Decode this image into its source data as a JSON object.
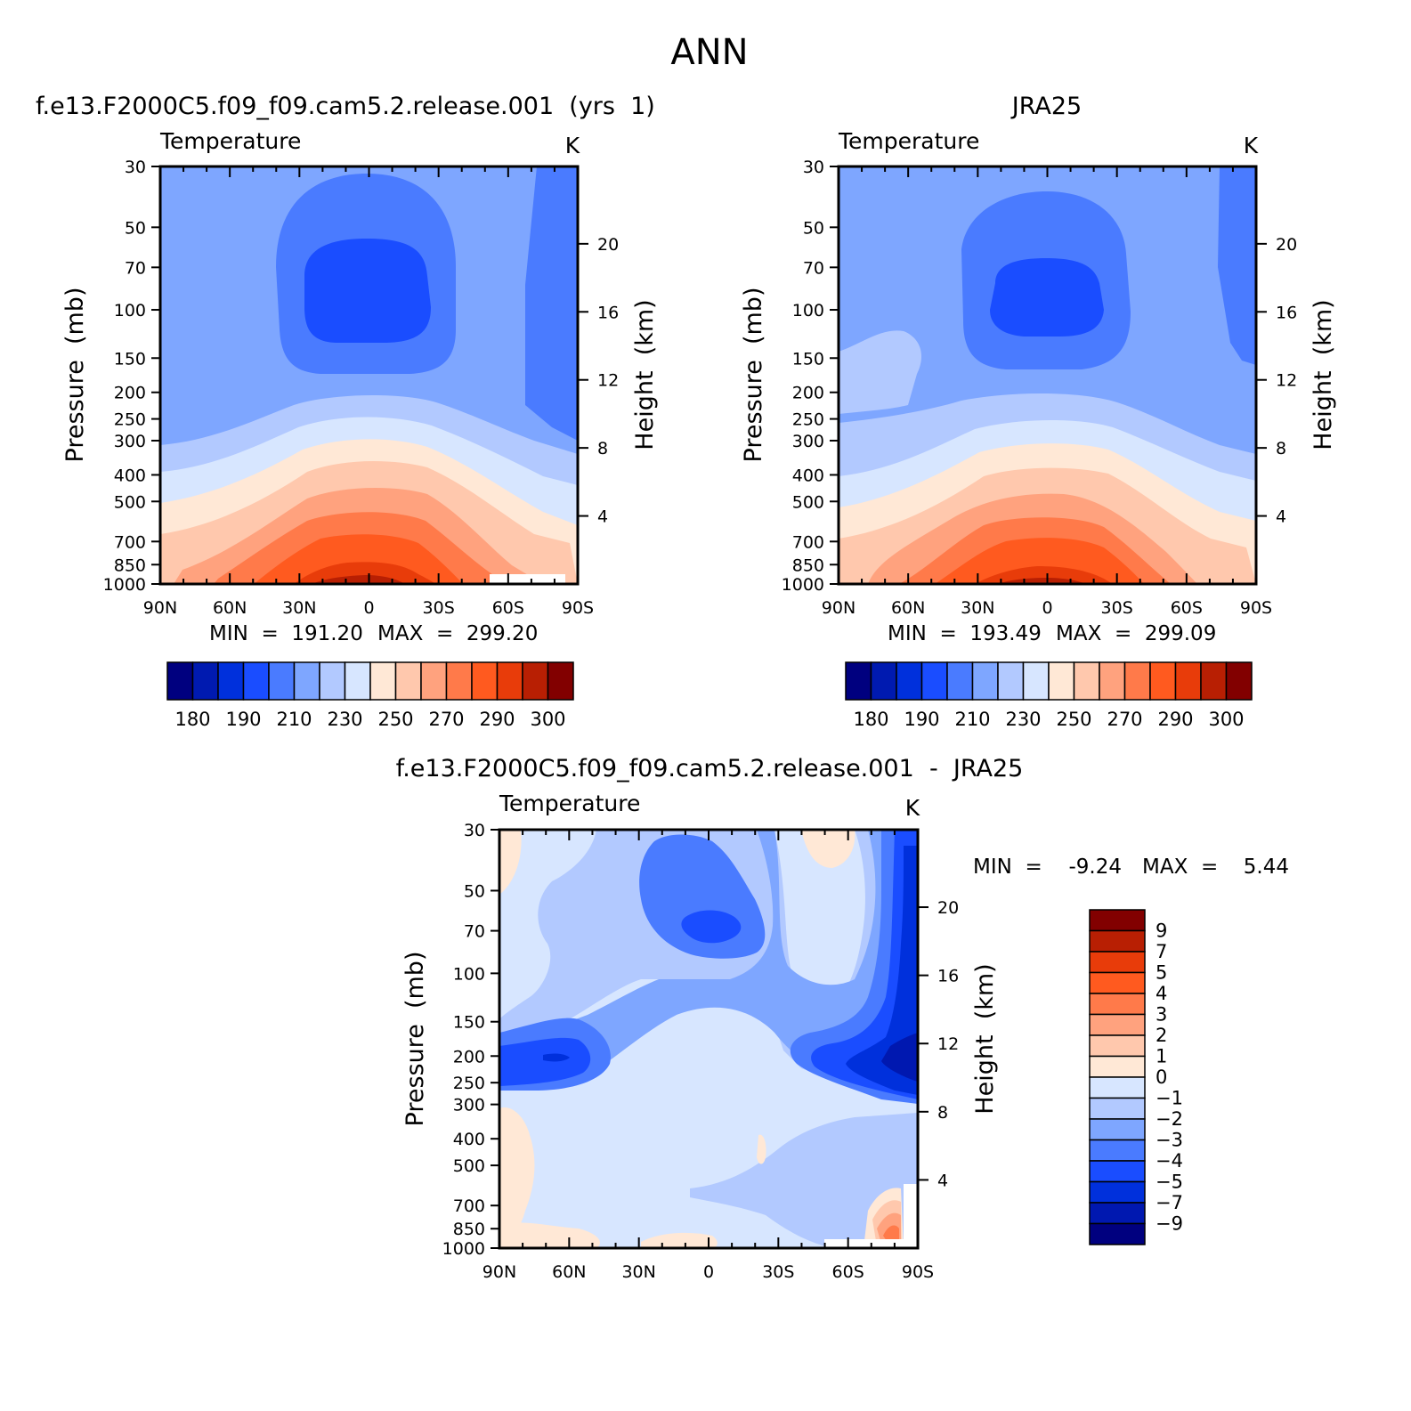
{
  "page": {
    "title": "ANN"
  },
  "colors": {
    "temp_palette": [
      "#00007f",
      "#001ab0",
      "#0030dc",
      "#1a4dff",
      "#4a7bff",
      "#7ea6ff",
      "#b2c9ff",
      "#d7e6ff",
      "#ffe8d6",
      "#ffc8ad",
      "#ffa27e",
      "#ff7a4a",
      "#ff5a1f",
      "#e83c0a",
      "#b81f03",
      "#820000"
    ],
    "diff_palette": [
      "#00007f",
      "#0018b0",
      "#0030dc",
      "#1a4dff",
      "#4a7bff",
      "#7ea6ff",
      "#b2c9ff",
      "#d7e6ff",
      "#ffe8d6",
      "#ffc8ad",
      "#ffa27e",
      "#ff7a4a",
      "#ff5a1f",
      "#e83c0a",
      "#b81f03",
      "#820000"
    ]
  },
  "chart_data": [
    {
      "type": "heatmap",
      "panel_title": "f.e13.F2000C5.f09_f09.cam5.2.release.001  (yrs  1)",
      "variable_label": "Temperature",
      "units_label": "K",
      "xlabel": "",
      "ylabel": "Pressure  (mb)",
      "y2label": "Height  (km)",
      "x_ticks": [
        "90N",
        "60N",
        "30N",
        "0",
        "30S",
        "60S",
        "90S"
      ],
      "y_ticks": [
        "30",
        "50",
        "70",
        "100",
        "150",
        "200",
        "250",
        "300",
        "400",
        "500",
        "700",
        "850",
        "1000"
      ],
      "y_tick_values": [
        30,
        50,
        70,
        100,
        150,
        200,
        250,
        300,
        400,
        500,
        700,
        850,
        1000
      ],
      "y2_ticks": [
        "20",
        "16",
        "12",
        "8",
        "4"
      ],
      "y2_tick_values": [
        20,
        16,
        12,
        8,
        4
      ],
      "ylim": [
        1000,
        30
      ],
      "min_label": "MIN  =  191.20",
      "max_label": "MAX  =  299.20",
      "min": 191.2,
      "max": 299.2,
      "colorbar_labels": [
        "180",
        "190",
        "210",
        "230",
        "250",
        "270",
        "290",
        "300"
      ],
      "colorbar_levels": [
        175,
        180,
        185,
        190,
        200,
        210,
        220,
        230,
        240,
        250,
        260,
        270,
        280,
        290,
        295,
        300
      ],
      "levels_at_1000mb": [
        280,
        285,
        290,
        295,
        299,
        295,
        290,
        285,
        275,
        260
      ],
      "trop_min_mb": 80,
      "trop_min_value": 193
    },
    {
      "type": "heatmap",
      "panel_title": "JRA25",
      "variable_label": "Temperature",
      "units_label": "K",
      "xlabel": "",
      "ylabel": "Pressure  (mb)",
      "y2label": "Height  (km)",
      "x_ticks": [
        "90N",
        "60N",
        "30N",
        "0",
        "30S",
        "60S",
        "90S"
      ],
      "y_ticks": [
        "30",
        "50",
        "70",
        "100",
        "150",
        "200",
        "250",
        "300",
        "400",
        "500",
        "700",
        "850",
        "1000"
      ],
      "y_tick_values": [
        30,
        50,
        70,
        100,
        150,
        200,
        250,
        300,
        400,
        500,
        700,
        850,
        1000
      ],
      "y2_ticks": [
        "20",
        "16",
        "12",
        "8",
        "4"
      ],
      "y2_tick_values": [
        20,
        16,
        12,
        8,
        4
      ],
      "ylim": [
        1000,
        30
      ],
      "min_label": "MIN  =  193.49",
      "max_label": "MAX  =  299.09",
      "min": 193.49,
      "max": 299.09,
      "colorbar_labels": [
        "180",
        "190",
        "210",
        "230",
        "250",
        "270",
        "290",
        "300"
      ],
      "colorbar_levels": [
        175,
        180,
        185,
        190,
        200,
        210,
        220,
        230,
        240,
        250,
        260,
        270,
        280,
        290,
        295,
        300
      ],
      "trop_min_mb": 85,
      "trop_min_value": 195
    },
    {
      "type": "heatmap",
      "panel_title": "f.e13.F2000C5.f09_f09.cam5.2.release.001  -  JRA25",
      "variable_label": "Temperature",
      "units_label": "K",
      "xlabel": "",
      "ylabel": "Pressure  (mb)",
      "y2label": "Height  (km)",
      "x_ticks": [
        "90N",
        "60N",
        "30N",
        "0",
        "30S",
        "60S",
        "90S"
      ],
      "y_ticks": [
        "30",
        "50",
        "70",
        "100",
        "150",
        "200",
        "250",
        "300",
        "400",
        "500",
        "700",
        "850",
        "1000"
      ],
      "y_tick_values": [
        30,
        50,
        70,
        100,
        150,
        200,
        250,
        300,
        400,
        500,
        700,
        850,
        1000
      ],
      "y2_ticks": [
        "20",
        "16",
        "12",
        "8",
        "4"
      ],
      "y2_tick_values": [
        20,
        16,
        12,
        8,
        4
      ],
      "ylim": [
        1000,
        30
      ],
      "min_label": "MIN  =",
      "min_value": "-9.24",
      "max_label": "MAX  =",
      "max_value": "5.44",
      "min": -9.24,
      "max": 5.44,
      "colorbar_labels": [
        "9",
        "7",
        "5",
        "4",
        "3",
        "2",
        "1",
        "0",
        "−1",
        "−2",
        "−3",
        "−4",
        "−5",
        "−7",
        "−9"
      ],
      "colorbar_levels": [
        -9,
        -7,
        -5,
        -4,
        -3,
        -2,
        -1,
        0,
        1,
        2,
        3,
        4,
        5,
        7,
        9
      ]
    }
  ]
}
